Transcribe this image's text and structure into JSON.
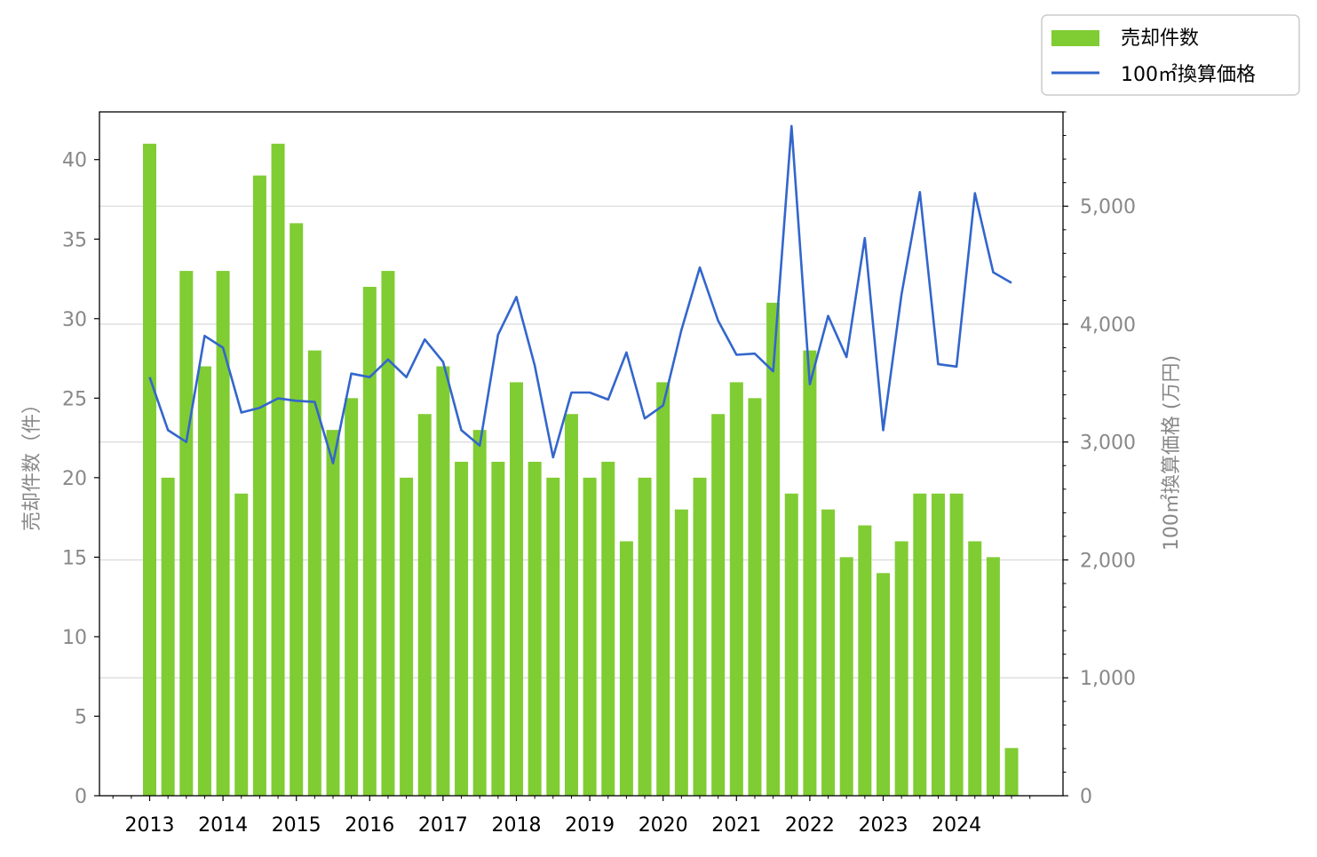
{
  "chart_data": {
    "type": "bar+line",
    "x_tick_labels": [
      "2013",
      "2014",
      "2015",
      "2016",
      "2017",
      "2018",
      "2019",
      "2020",
      "2021",
      "2022",
      "2023",
      "2024"
    ],
    "y_left": {
      "label": "売却件数（件）",
      "range": [
        0,
        43
      ],
      "ticks": [
        0,
        5,
        10,
        15,
        20,
        25,
        30,
        35,
        40
      ]
    },
    "y_right": {
      "label": "100㎡換算価格 (万円)",
      "range": [
        0,
        5800
      ],
      "ticks": [
        0,
        1000,
        2000,
        3000,
        4000,
        5000
      ],
      "tick_labels": [
        "0",
        "1,000",
        "2,000",
        "3,000",
        "4,000",
        "5,000"
      ]
    },
    "grid": "horizontal (right axis major ticks)",
    "legend_position": "top-right, outside plot",
    "series": [
      {
        "name": "売却件数",
        "kind": "bar",
        "axis": "left",
        "color": "#80cc33",
        "values": [
          41,
          20,
          33,
          27,
          33,
          19,
          39,
          41,
          36,
          28,
          23,
          25,
          32,
          33,
          20,
          24,
          27,
          21,
          23,
          21,
          26,
          21,
          20,
          24,
          20,
          21,
          16,
          20,
          26,
          18,
          20,
          24,
          26,
          25,
          31,
          19,
          28,
          18,
          15,
          17,
          14,
          16,
          19,
          19,
          19,
          16,
          15,
          3
        ]
      },
      {
        "name": "100㎡換算価格",
        "kind": "line",
        "axis": "right",
        "color": "#3366cc",
        "values": [
          3550,
          3100,
          3000,
          3900,
          3800,
          3250,
          3290,
          3370,
          3350,
          3340,
          2820,
          3580,
          3550,
          3700,
          3550,
          3870,
          3680,
          3100,
          2970,
          3910,
          4230,
          3650,
          2870,
          3420,
          3420,
          3360,
          3760,
          3200,
          3310,
          3950,
          4480,
          4030,
          3740,
          3750,
          3600,
          5680,
          3490,
          4070,
          3720,
          4730,
          3100,
          4250,
          5120,
          3660,
          3640,
          5110,
          4440,
          4350
        ]
      }
    ]
  }
}
